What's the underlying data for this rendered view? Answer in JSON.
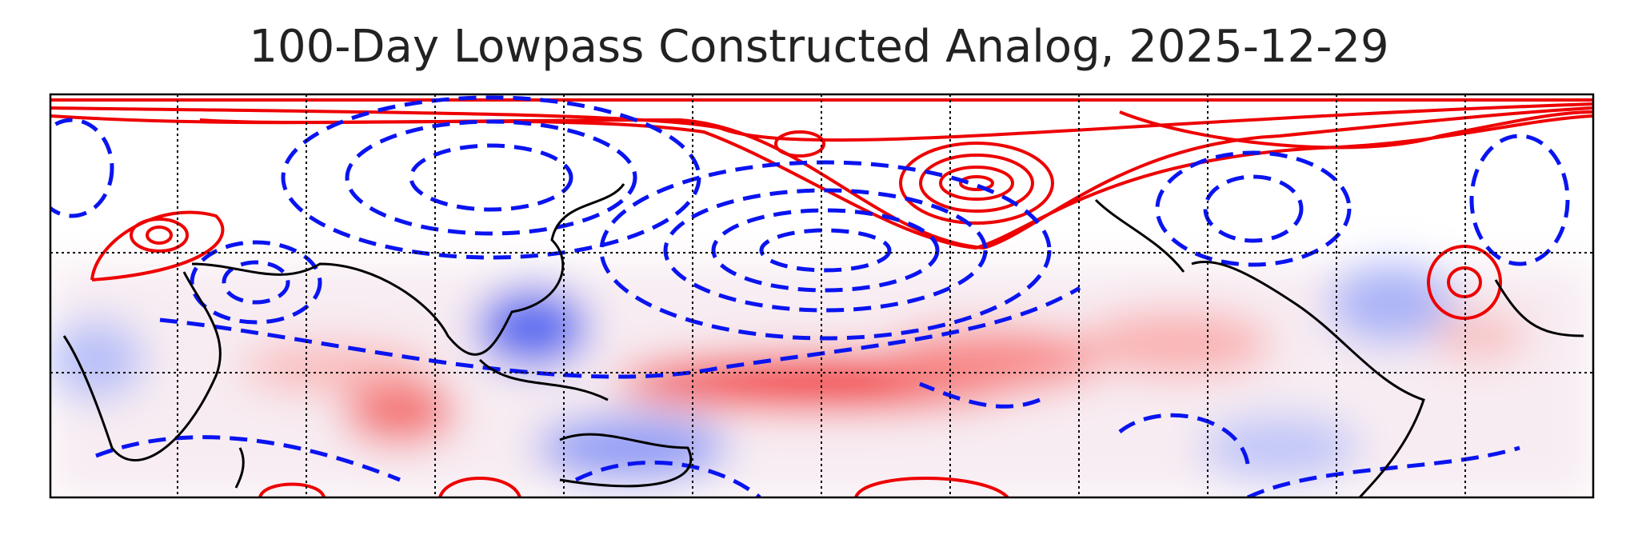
{
  "title": "100-Day Lowpass Constructed Analog, 2025-12-29"
}
